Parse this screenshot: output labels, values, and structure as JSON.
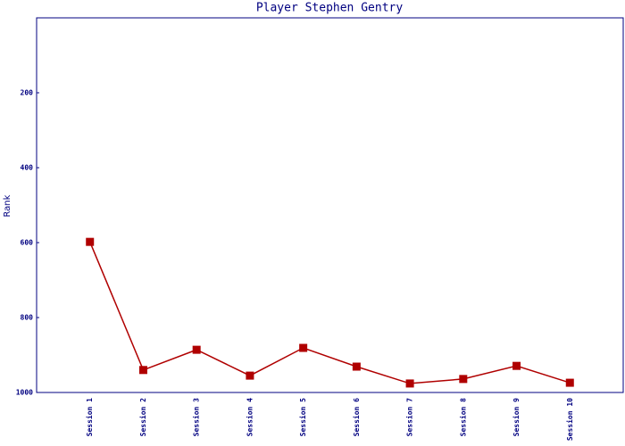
{
  "chart_data": {
    "type": "line",
    "title": "Player Stephen Gentry",
    "y_label": "Rank",
    "categories": [
      "Session 1",
      "Session 2",
      "Session 3",
      "Session 4",
      "Session 5",
      "Session 6",
      "Session 7",
      "Session 8",
      "Session 9",
      "Session 10"
    ],
    "series": [
      {
        "name": "Rank",
        "color": "#b00000",
        "values": [
          598,
          940,
          886,
          955,
          881,
          931,
          976,
          964,
          929,
          974
        ]
      }
    ],
    "ylim": [
      1000,
      0
    ],
    "yticks": [
      200,
      400,
      600,
      800,
      1000
    ],
    "axis_color": "#000080"
  }
}
